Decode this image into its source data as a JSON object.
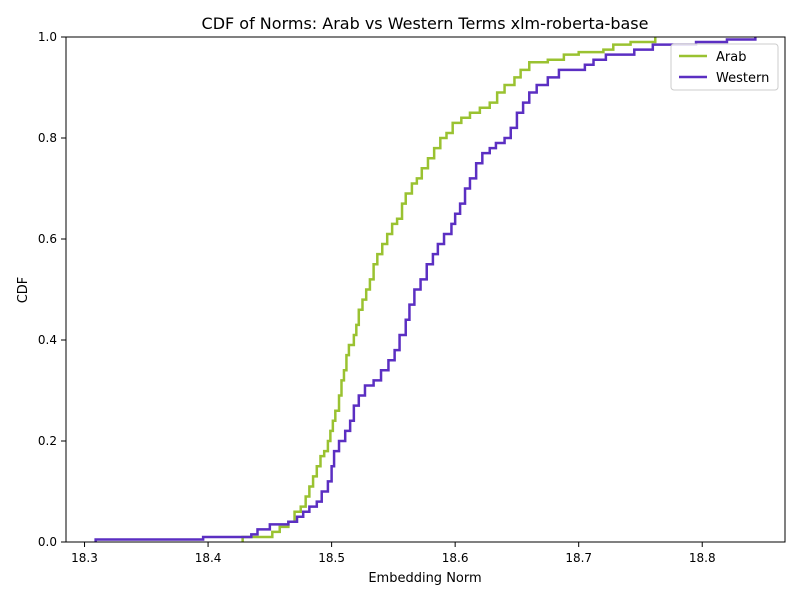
{
  "chart_data": {
    "type": "line",
    "title": "CDF of Norms: Arab vs Western Terms xlm-roberta-base",
    "xlabel": "Embedding Norm",
    "ylabel": "CDF",
    "xlim": [
      18.285,
      18.867
    ],
    "ylim": [
      0,
      1
    ],
    "xticks": [
      18.3,
      18.4,
      18.5,
      18.6,
      18.7,
      18.8
    ],
    "yticks": [
      0.0,
      0.2,
      0.4,
      0.6,
      0.8,
      1.0
    ],
    "xtick_labels": [
      "18.3",
      "18.4",
      "18.5",
      "18.6",
      "18.7",
      "18.8"
    ],
    "ytick_labels": [
      "0.0",
      "0.2",
      "0.4",
      "0.6",
      "0.8",
      "1.0"
    ],
    "grid": false,
    "legend_position": "top-right",
    "series": [
      {
        "name": "Arab",
        "color": "#9ac231",
        "step": true,
        "points": [
          [
            18.428,
            0.0
          ],
          [
            18.428,
            0.01
          ],
          [
            18.443,
            0.01
          ],
          [
            18.452,
            0.02
          ],
          [
            18.458,
            0.03
          ],
          [
            18.465,
            0.04
          ],
          [
            18.47,
            0.06
          ],
          [
            18.475,
            0.07
          ],
          [
            18.479,
            0.09
          ],
          [
            18.482,
            0.11
          ],
          [
            18.485,
            0.13
          ],
          [
            18.488,
            0.15
          ],
          [
            18.491,
            0.17
          ],
          [
            18.494,
            0.18
          ],
          [
            18.497,
            0.2
          ],
          [
            18.499,
            0.22
          ],
          [
            18.501,
            0.24
          ],
          [
            18.503,
            0.26
          ],
          [
            18.506,
            0.29
          ],
          [
            18.508,
            0.32
          ],
          [
            18.51,
            0.34
          ],
          [
            18.512,
            0.37
          ],
          [
            18.514,
            0.39
          ],
          [
            18.518,
            0.41
          ],
          [
            18.52,
            0.43
          ],
          [
            18.522,
            0.46
          ],
          [
            18.525,
            0.48
          ],
          [
            18.528,
            0.5
          ],
          [
            18.531,
            0.52
          ],
          [
            18.534,
            0.55
          ],
          [
            18.537,
            0.57
          ],
          [
            18.541,
            0.59
          ],
          [
            18.545,
            0.61
          ],
          [
            18.549,
            0.63
          ],
          [
            18.553,
            0.64
          ],
          [
            18.557,
            0.67
          ],
          [
            18.56,
            0.69
          ],
          [
            18.565,
            0.71
          ],
          [
            18.569,
            0.72
          ],
          [
            18.573,
            0.74
          ],
          [
            18.578,
            0.76
          ],
          [
            18.583,
            0.78
          ],
          [
            18.588,
            0.8
          ],
          [
            18.593,
            0.81
          ],
          [
            18.598,
            0.83
          ],
          [
            18.605,
            0.84
          ],
          [
            18.612,
            0.85
          ],
          [
            18.62,
            0.86
          ],
          [
            18.628,
            0.87
          ],
          [
            18.634,
            0.89
          ],
          [
            18.64,
            0.905
          ],
          [
            18.648,
            0.92
          ],
          [
            18.653,
            0.935
          ],
          [
            18.66,
            0.95
          ],
          [
            18.675,
            0.955
          ],
          [
            18.688,
            0.965
          ],
          [
            18.7,
            0.97
          ],
          [
            18.72,
            0.975
          ],
          [
            18.728,
            0.985
          ],
          [
            18.742,
            0.99
          ],
          [
            18.762,
            1.0
          ]
        ]
      },
      {
        "name": "Western",
        "color": "#5b2fc2",
        "step": true,
        "points": [
          [
            18.309,
            0.0
          ],
          [
            18.309,
            0.005
          ],
          [
            18.396,
            0.005
          ],
          [
            18.396,
            0.01
          ],
          [
            18.428,
            0.01
          ],
          [
            18.435,
            0.015
          ],
          [
            18.44,
            0.025
          ],
          [
            18.45,
            0.035
          ],
          [
            18.465,
            0.04
          ],
          [
            18.472,
            0.05
          ],
          [
            18.477,
            0.06
          ],
          [
            18.482,
            0.07
          ],
          [
            18.488,
            0.08
          ],
          [
            18.492,
            0.1
          ],
          [
            18.497,
            0.12
          ],
          [
            18.5,
            0.15
          ],
          [
            18.502,
            0.18
          ],
          [
            18.506,
            0.2
          ],
          [
            18.511,
            0.22
          ],
          [
            18.515,
            0.24
          ],
          [
            18.518,
            0.27
          ],
          [
            18.522,
            0.29
          ],
          [
            18.527,
            0.31
          ],
          [
            18.534,
            0.32
          ],
          [
            18.54,
            0.34
          ],
          [
            18.546,
            0.36
          ],
          [
            18.551,
            0.38
          ],
          [
            18.555,
            0.41
          ],
          [
            18.56,
            0.44
          ],
          [
            18.563,
            0.47
          ],
          [
            18.567,
            0.5
          ],
          [
            18.572,
            0.52
          ],
          [
            18.577,
            0.55
          ],
          [
            18.582,
            0.57
          ],
          [
            18.586,
            0.59
          ],
          [
            18.591,
            0.61
          ],
          [
            18.597,
            0.63
          ],
          [
            18.6,
            0.65
          ],
          [
            18.604,
            0.67
          ],
          [
            18.608,
            0.7
          ],
          [
            18.612,
            0.72
          ],
          [
            18.617,
            0.75
          ],
          [
            18.622,
            0.77
          ],
          [
            18.628,
            0.78
          ],
          [
            18.633,
            0.79
          ],
          [
            18.64,
            0.8
          ],
          [
            18.645,
            0.82
          ],
          [
            18.65,
            0.85
          ],
          [
            18.655,
            0.87
          ],
          [
            18.66,
            0.89
          ],
          [
            18.666,
            0.905
          ],
          [
            18.675,
            0.92
          ],
          [
            18.684,
            0.935
          ],
          [
            18.705,
            0.945
          ],
          [
            18.712,
            0.955
          ],
          [
            18.722,
            0.965
          ],
          [
            18.745,
            0.975
          ],
          [
            18.76,
            0.985
          ],
          [
            18.795,
            0.99
          ],
          [
            18.82,
            0.995
          ],
          [
            18.843,
            1.0
          ]
        ]
      }
    ]
  }
}
